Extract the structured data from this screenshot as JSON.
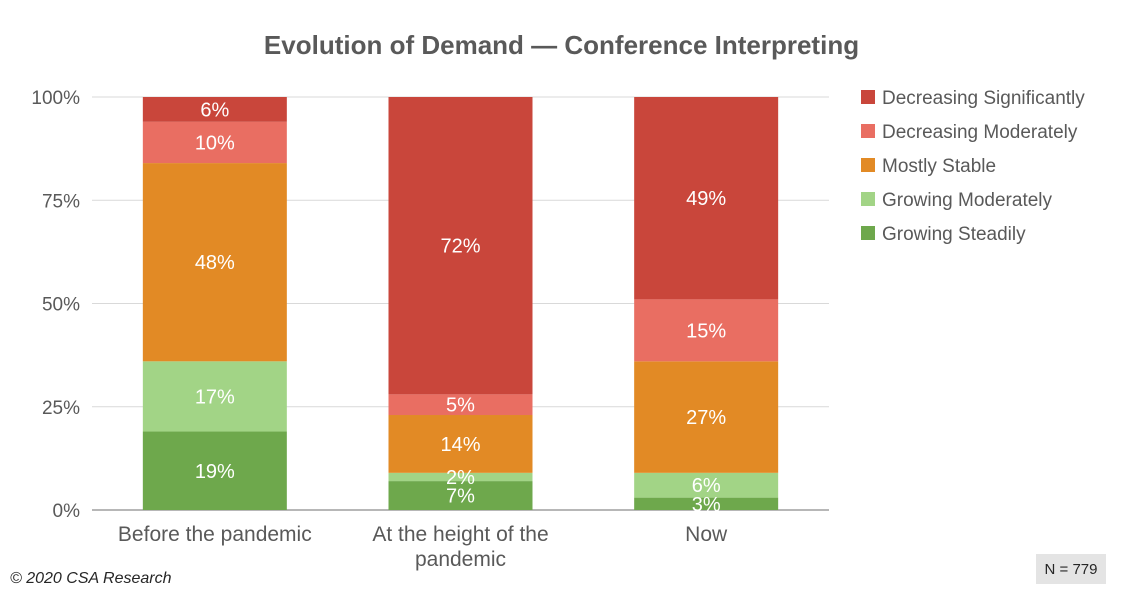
{
  "chart_data": {
    "type": "bar",
    "stacked": true,
    "title": "Evolution of Demand — Conference Interpreting",
    "categories": [
      [
        "Before the pandemic"
      ],
      [
        "At the height of the",
        "pandemic"
      ],
      [
        "Now"
      ]
    ],
    "series": [
      {
        "name": "Growing Steadily",
        "color": "#6ea84c",
        "values": [
          19,
          7,
          3
        ]
      },
      {
        "name": "Growing Moderately",
        "color": "#a2d486",
        "values": [
          17,
          2,
          6
        ]
      },
      {
        "name": "Mostly Stable",
        "color": "#e28a25",
        "values": [
          48,
          14,
          27
        ]
      },
      {
        "name": "Decreasing Moderately",
        "color": "#e96e62",
        "values": [
          10,
          5,
          15
        ]
      },
      {
        "name": "Decreasing Significantly",
        "color": "#c9463b",
        "values": [
          6,
          72,
          49
        ]
      }
    ],
    "ylim": [
      0,
      100
    ],
    "yticks": [
      "0%",
      "25%",
      "50%",
      "75%",
      "100%"
    ],
    "grid": true,
    "legend_position": "right",
    "legend_order": [
      "Decreasing Significantly",
      "Decreasing Moderately",
      "Mostly Stable",
      "Growing Moderately",
      "Growing Steadily"
    ]
  },
  "footer": {
    "copyright": "© 2020 CSA Research",
    "sample_size": "N = 779"
  }
}
